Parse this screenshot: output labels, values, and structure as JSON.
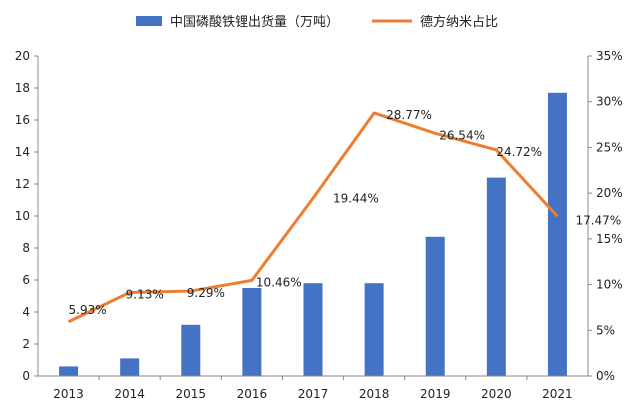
{
  "chart_data": {
    "type": "bar",
    "categories": [
      "2013",
      "2014",
      "2015",
      "2016",
      "2017",
      "2018",
      "2019",
      "2020",
      "2021"
    ],
    "series": [
      {
        "name": "中国磷酸铁锂出货量（万吨）",
        "type": "bar",
        "axis": "left",
        "color": "#4472C4",
        "values": [
          0.6,
          1.1,
          3.2,
          5.5,
          5.8,
          5.8,
          8.7,
          12.4,
          17.7
        ]
      },
      {
        "name": "德方纳米占比",
        "type": "line",
        "axis": "right",
        "color": "#ED7D31",
        "values": [
          5.93,
          9.13,
          9.29,
          10.46,
          19.44,
          28.77,
          26.54,
          24.72,
          17.47
        ],
        "labels": [
          "5.93%",
          "9.13%",
          "9.29%",
          "10.46%",
          "19.44%",
          "28.77%",
          "26.54%",
          "24.72%",
          "17.47%"
        ]
      }
    ],
    "ylim_left": [
      0,
      20
    ],
    "yticks_left": [
      "0",
      "2",
      "4",
      "6",
      "8",
      "10",
      "12",
      "14",
      "16",
      "18",
      "20"
    ],
    "ylim_right": [
      0,
      35
    ],
    "yticks_right": [
      "0%",
      "5%",
      "10%",
      "15%",
      "20%",
      "25%",
      "30%",
      "35%"
    ],
    "legend_position": "top",
    "grid": false
  }
}
